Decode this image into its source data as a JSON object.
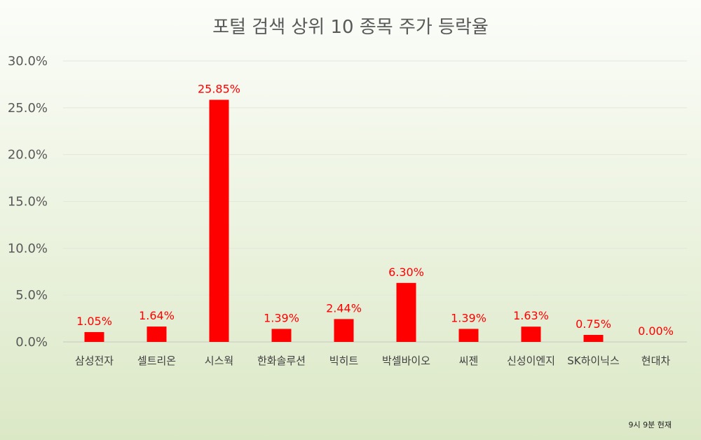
{
  "chart_data": {
    "type": "bar",
    "title": "포털 검색 상위 10 종목 주가 등락율",
    "categories": [
      "삼성전자",
      "셀트리온",
      "시스웍",
      "한화솔루션",
      "빅히트",
      "박셀바이오",
      "씨젠",
      "신성이엔지",
      "SK하이닉스",
      "현대차"
    ],
    "series": [
      {
        "values": [
          1.05,
          1.64,
          25.85,
          1.39,
          2.44,
          6.3,
          1.39,
          1.63,
          0.75,
          0.0
        ]
      }
    ],
    "data_labels": [
      "1.05%",
      "1.64%",
      "25.85%",
      "1.39%",
      "2.44%",
      "6.30%",
      "1.39%",
      "1.63%",
      "0.75%",
      "0.00%"
    ],
    "y_ticks": [
      0,
      5,
      10,
      15,
      20,
      25,
      30
    ],
    "y_tick_labels": [
      "0.0%",
      "5.0%",
      "10.0%",
      "15.0%",
      "20.0%",
      "25.0%",
      "30.0%"
    ],
    "ylim": [
      0,
      30
    ],
    "xlabel": "",
    "ylabel": "",
    "grid": true,
    "legend": "none",
    "bar_color": "#ff0000",
    "label_color": "#ff0000"
  },
  "footnote": "9시 9분 현재"
}
